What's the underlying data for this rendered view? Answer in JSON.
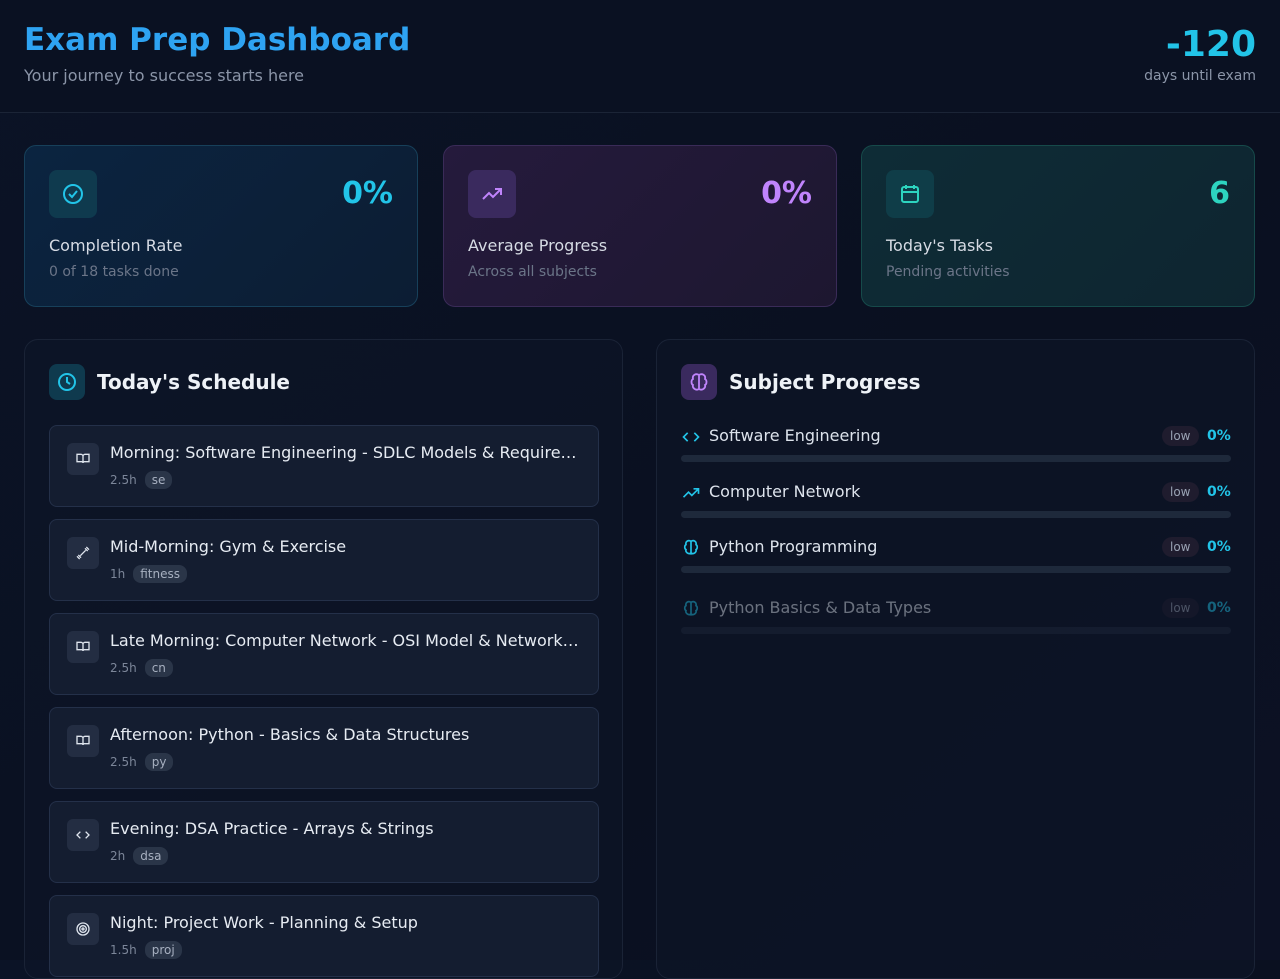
{
  "header": {
    "title": "Exam Prep Dashboard",
    "subtitle": "Your journey to success starts here",
    "countdown": "-120",
    "countdown_label": "days until exam"
  },
  "stats": [
    {
      "value": "0%",
      "label": "Completion Rate",
      "note": "0 of 18 tasks done"
    },
    {
      "value": "0%",
      "label": "Average Progress",
      "note": "Across all subjects"
    },
    {
      "value": "6",
      "label": "Today's Tasks",
      "note": "Pending activities"
    }
  ],
  "schedule": {
    "title": "Today's Schedule",
    "items": [
      {
        "title": "Morning: Software Engineering - SDLC Models & Require…",
        "duration": "2.5h",
        "tag": "se"
      },
      {
        "title": "Mid-Morning: Gym & Exercise",
        "duration": "1h",
        "tag": "fitness"
      },
      {
        "title": "Late Morning: Computer Network - OSI Model & Network…",
        "duration": "2.5h",
        "tag": "cn"
      },
      {
        "title": "Afternoon: Python - Basics & Data Structures",
        "duration": "2.5h",
        "tag": "py"
      },
      {
        "title": "Evening: DSA Practice - Arrays & Strings",
        "duration": "2h",
        "tag": "dsa"
      },
      {
        "title": "Night: Project Work - Planning & Setup",
        "duration": "1.5h",
        "tag": "proj"
      }
    ]
  },
  "subjects": {
    "title": "Subject Progress",
    "items": [
      {
        "name": "Software Engineering",
        "priority": "low",
        "progress": "0%"
      },
      {
        "name": "Computer Network",
        "priority": "low",
        "progress": "0%"
      },
      {
        "name": "Python Programming",
        "priority": "low",
        "progress": "0%"
      },
      {
        "name": "Python Basics & Data Types",
        "priority": "low",
        "progress": "0%"
      }
    ]
  }
}
